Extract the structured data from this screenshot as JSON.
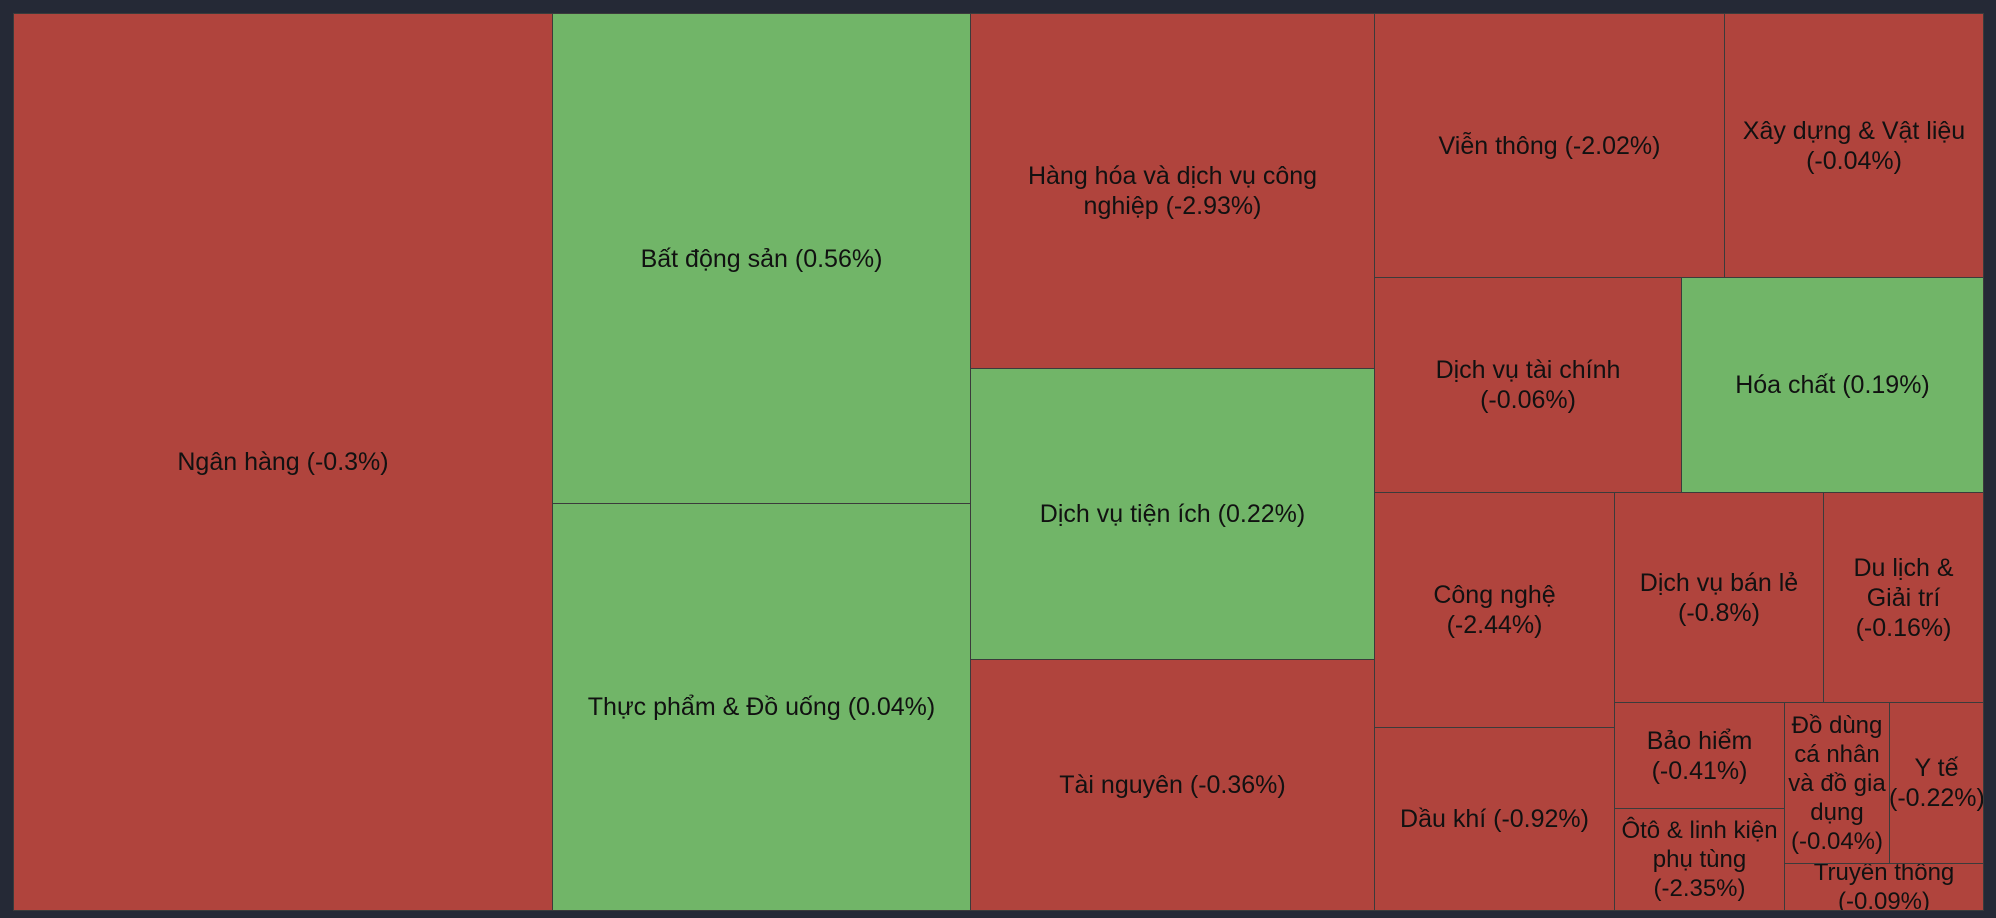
{
  "colors": {
    "negative": "#b0443d",
    "positive": "#71b568",
    "background": "#252936",
    "text": "#111111"
  },
  "chart_data": {
    "type": "treemap",
    "title": "",
    "items": [
      {
        "id": "ngan-hang",
        "label": "Ngân hàng (-0.3%)",
        "name": "Ngân hàng",
        "change": -0.3
      },
      {
        "id": "bat-dong-san",
        "label": "Bất động sản (0.56%)",
        "name": "Bất động sản",
        "change": 0.56
      },
      {
        "id": "thuc-pham",
        "label": "Thực phẩm & Đồ uống (0.04%)",
        "name": "Thực phẩm & Đồ uống",
        "change": 0.04
      },
      {
        "id": "hang-hoa",
        "label": "Hàng hóa và dịch vụ công nghiệp (-2.93%)",
        "name": "Hàng hóa và dịch vụ công nghiệp",
        "change": -2.93
      },
      {
        "id": "dich-vu-tien-ich",
        "label": "Dịch vụ tiện ích (0.22%)",
        "name": "Dịch vụ tiện ích",
        "change": 0.22
      },
      {
        "id": "tai-nguyen",
        "label": "Tài nguyên (-0.36%)",
        "name": "Tài nguyên",
        "change": -0.36
      },
      {
        "id": "vien-thong",
        "label": "Viễn thông (-2.02%)",
        "name": "Viễn thông",
        "change": -2.02
      },
      {
        "id": "xay-dung",
        "label": "Xây dựng & Vật liệu (-0.04%)",
        "name": "Xây dựng & Vật liệu",
        "change": -0.04
      },
      {
        "id": "dich-vu-tai-chinh",
        "label": "Dịch vụ tài chính (-0.06%)",
        "name": "Dịch vụ tài chính",
        "change": -0.06
      },
      {
        "id": "hoa-chat",
        "label": "Hóa chất (0.19%)",
        "name": "Hóa chất",
        "change": 0.19
      },
      {
        "id": "cong-nghe",
        "label": "Công nghệ (-2.44%)",
        "name": "Công nghệ",
        "change": -2.44
      },
      {
        "id": "dich-vu-ban-le",
        "label": "Dịch vụ bán lẻ (-0.8%)",
        "name": "Dịch vụ bán lẻ",
        "change": -0.8
      },
      {
        "id": "du-lich",
        "label": "Du lịch & Giải trí (-0.16%)",
        "name": "Du lịch & Giải trí",
        "change": -0.16
      },
      {
        "id": "dau-khi",
        "label": "Dầu khí (-0.92%)",
        "name": "Dầu khí",
        "change": -0.92
      },
      {
        "id": "bao-hiem",
        "label": "Bảo hiểm (-0.41%)",
        "name": "Bảo hiểm",
        "change": -0.41
      },
      {
        "id": "do-dung",
        "label": "Đồ dùng cá nhân và đồ gia dụng (-0.04%)",
        "name": "Đồ dùng cá nhân và đồ gia dụng",
        "change": -0.04
      },
      {
        "id": "y-te",
        "label": "Y tế (-0.22%)",
        "name": "Y tế",
        "change": -0.22
      },
      {
        "id": "oto",
        "label": "Ôtô & linh kiện phụ tùng (-2.35%)",
        "name": "Ôtô & linh kiện phụ tùng",
        "change": -2.35
      },
      {
        "id": "truyen-thong",
        "label": "Truyền thông (-0.09%)",
        "name": "Truyền thông",
        "change": -0.09
      }
    ]
  }
}
